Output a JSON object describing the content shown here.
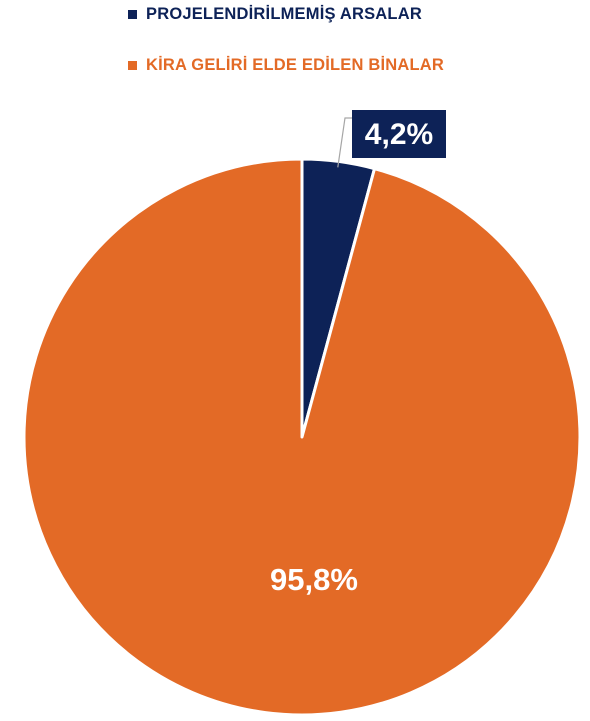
{
  "chart_data": {
    "type": "pie",
    "categories": [
      "PROJELENDİRİLMEMİŞ ARSALAR",
      "KİRA GELİRİ ELDE EDİLEN BİNALAR"
    ],
    "values": [
      4.2,
      95.8
    ],
    "data_labels": [
      "4,2%",
      "95,8%"
    ],
    "colors": [
      "#0d2257",
      "#e36a26"
    ],
    "start_angle_deg": 0,
    "direction": "clockwise",
    "legend_position": "top"
  }
}
